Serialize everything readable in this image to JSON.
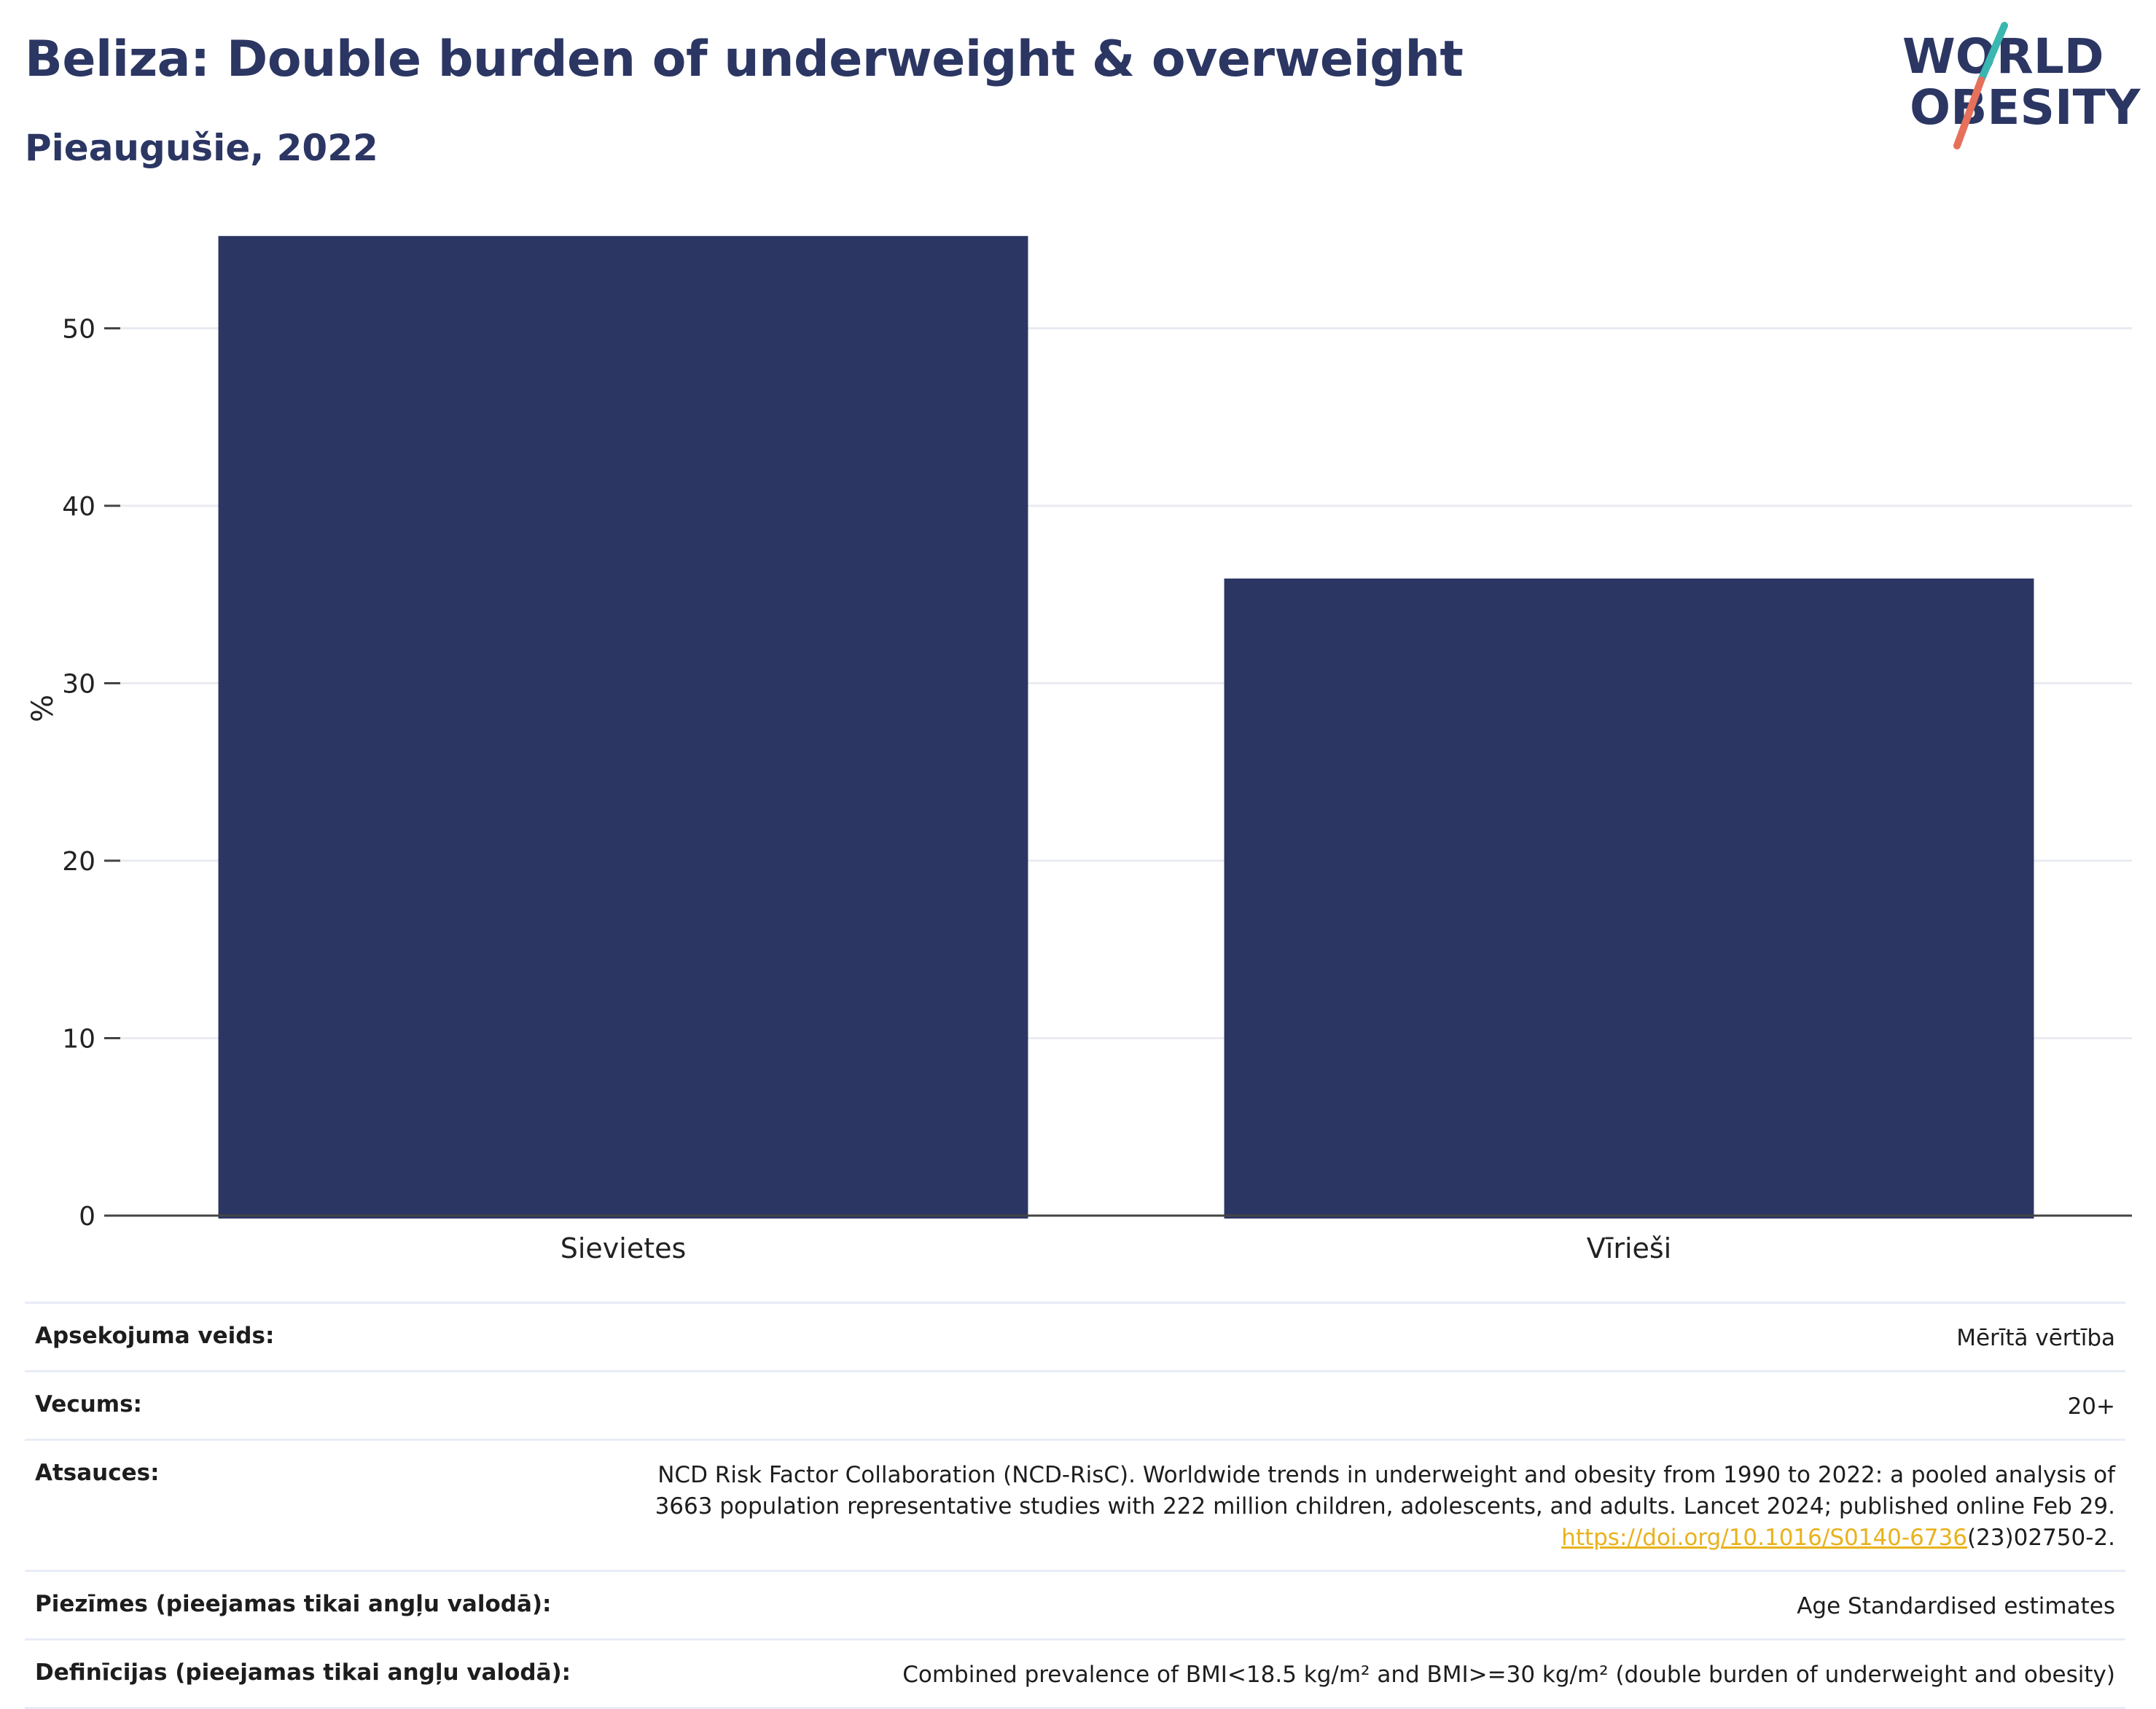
{
  "header": {
    "title": "Beliza: Double burden of underweight & overweight",
    "subtitle": "Pieaugušie, 2022"
  },
  "logo": {
    "line1": "WORLD",
    "line2": "OBESITY",
    "slash_colors": [
      "#3ab7b0",
      "#e7705a"
    ],
    "text_color": "#2b3663"
  },
  "chart_data": {
    "type": "bar",
    "categories": [
      "Sievietes",
      "Vīrieši"
    ],
    "values": [
      55.2,
      35.9
    ],
    "ylabel": "%",
    "xlabel": "",
    "ylim": [
      0,
      57
    ],
    "yticks": [
      0,
      10,
      20,
      30,
      40,
      50
    ],
    "bar_color": "#2b3663",
    "grid": true
  },
  "meta": {
    "rows": [
      {
        "key": "Apsekojuma veids:",
        "value": "Mērītā vērtība"
      },
      {
        "key": "Vecums:",
        "value": "20+"
      },
      {
        "key": "Atsauces:",
        "value_line1": "NCD Risk Factor Collaboration (NCD-RisC). Worldwide trends in underweight and obesity from 1990 to 2022: a pooled analysis of",
        "value_line2": "3663 population representative studies with 222 million children, adolescents, and adults. Lancet 2024; published online Feb 29.",
        "link": "https://doi.org/10.1016/S0140-6736",
        "link_suffix": "(23)02750-2."
      },
      {
        "key": "Piezīmes (pieejamas tikai angļu valodā):",
        "value": "Age Standardised estimates"
      },
      {
        "key": "Definīcijas (pieejamas tikai angļu valodā):",
        "value": "Combined prevalence of BMI<18.5 kg/m² and BMI>=30 kg/m² (double burden of underweight and obesity)"
      }
    ]
  }
}
